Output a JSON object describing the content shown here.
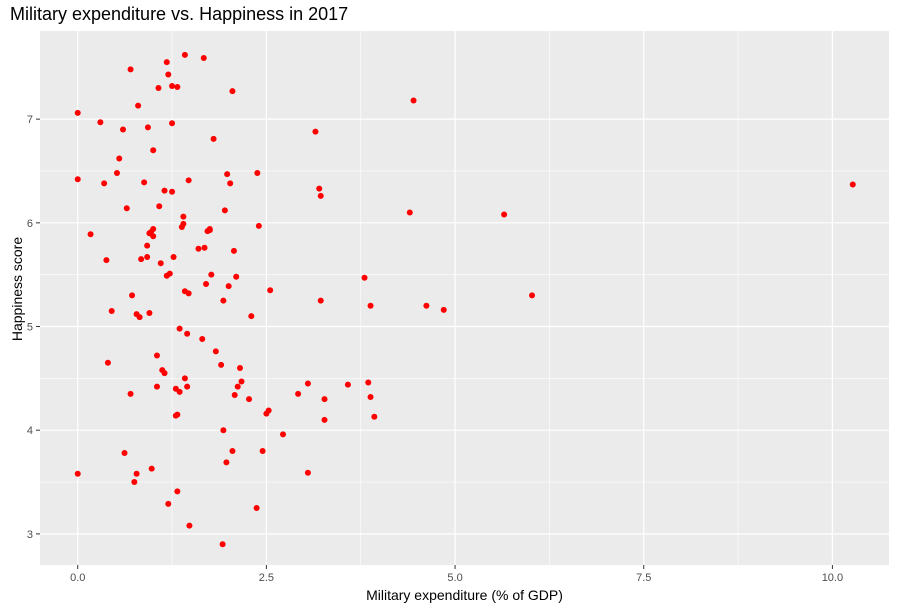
{
  "chart_data": {
    "type": "scatter",
    "title": "Military expenditure vs. Happiness in 2017",
    "xlabel": "Military expenditure (% of GDP)",
    "ylabel": "Happiness score",
    "xlim": [
      -0.5,
      10.75
    ],
    "ylim": [
      2.7,
      7.85
    ],
    "xticks": [
      0,
      2.5,
      5,
      7.5,
      10
    ],
    "xtick_labels": [
      "0.0",
      "2.5",
      "5.0",
      "7.5",
      "10.0"
    ],
    "yticks": [
      3,
      4,
      5,
      6,
      7
    ],
    "ytick_labels": [
      "3",
      "4",
      "5",
      "6",
      "7"
    ],
    "grid": true,
    "point_color": "#ff0000",
    "panel_background": "#ebebeb",
    "points": [
      [
        0.0,
        7.06
      ],
      [
        0.0,
        6.42
      ],
      [
        0.0,
        3.58
      ],
      [
        0.17,
        5.89
      ],
      [
        0.3,
        6.97
      ],
      [
        0.35,
        6.38
      ],
      [
        0.38,
        5.64
      ],
      [
        0.4,
        4.65
      ],
      [
        0.45,
        5.15
      ],
      [
        0.52,
        6.48
      ],
      [
        0.55,
        6.62
      ],
      [
        0.6,
        6.9
      ],
      [
        0.62,
        3.78
      ],
      [
        0.65,
        6.14
      ],
      [
        0.7,
        4.35
      ],
      [
        0.7,
        7.48
      ],
      [
        0.72,
        5.3
      ],
      [
        0.75,
        3.5
      ],
      [
        0.78,
        5.12
      ],
      [
        0.78,
        3.58
      ],
      [
        0.8,
        7.13
      ],
      [
        0.82,
        5.09
      ],
      [
        0.84,
        5.65
      ],
      [
        0.88,
        6.39
      ],
      [
        0.92,
        5.67
      ],
      [
        0.92,
        5.78
      ],
      [
        0.93,
        6.92
      ],
      [
        0.95,
        5.13
      ],
      [
        0.95,
        5.9
      ],
      [
        0.97,
        5.91
      ],
      [
        0.98,
        3.63
      ],
      [
        1.0,
        6.7
      ],
      [
        1.0,
        5.94
      ],
      [
        1.0,
        5.87
      ],
      [
        1.05,
        4.72
      ],
      [
        1.05,
        4.42
      ],
      [
        1.07,
        7.3
      ],
      [
        1.08,
        6.16
      ],
      [
        1.1,
        5.61
      ],
      [
        1.12,
        4.58
      ],
      [
        1.15,
        4.55
      ],
      [
        1.15,
        6.31
      ],
      [
        1.18,
        7.55
      ],
      [
        1.2,
        7.43
      ],
      [
        1.18,
        5.49
      ],
      [
        1.2,
        3.29
      ],
      [
        1.22,
        5.51
      ],
      [
        1.25,
        7.32
      ],
      [
        1.25,
        6.96
      ],
      [
        1.25,
        6.3
      ],
      [
        1.27,
        5.67
      ],
      [
        1.3,
        4.14
      ],
      [
        1.32,
        4.15
      ],
      [
        1.32,
        3.41
      ],
      [
        1.32,
        7.31
      ],
      [
        1.35,
        4.98
      ],
      [
        1.35,
        4.37
      ],
      [
        1.3,
        4.4
      ],
      [
        1.38,
        5.96
      ],
      [
        1.4,
        6.06
      ],
      [
        1.4,
        5.99
      ],
      [
        1.42,
        5.34
      ],
      [
        1.42,
        7.62
      ],
      [
        1.42,
        4.5
      ],
      [
        1.45,
        4.93
      ],
      [
        1.45,
        4.42
      ],
      [
        1.47,
        6.41
      ],
      [
        1.47,
        5.32
      ],
      [
        1.48,
        3.08
      ],
      [
        1.6,
        5.75
      ],
      [
        1.65,
        4.88
      ],
      [
        1.67,
        7.59
      ],
      [
        1.68,
        5.76
      ],
      [
        1.7,
        5.41
      ],
      [
        1.72,
        5.92
      ],
      [
        1.75,
        5.94
      ],
      [
        1.75,
        5.93
      ],
      [
        1.77,
        5.5
      ],
      [
        1.8,
        6.81
      ],
      [
        1.83,
        4.76
      ],
      [
        1.9,
        4.63
      ],
      [
        1.92,
        2.9
      ],
      [
        1.93,
        5.25
      ],
      [
        1.93,
        4.0
      ],
      [
        1.95,
        6.12
      ],
      [
        1.97,
        3.69
      ],
      [
        1.98,
        6.47
      ],
      [
        2.0,
        5.39
      ],
      [
        2.02,
        6.38
      ],
      [
        2.05,
        7.27
      ],
      [
        2.05,
        3.8
      ],
      [
        2.07,
        5.73
      ],
      [
        2.08,
        4.34
      ],
      [
        2.1,
        5.48
      ],
      [
        2.12,
        4.42
      ],
      [
        2.15,
        4.6
      ],
      [
        2.17,
        4.47
      ],
      [
        2.27,
        4.3
      ],
      [
        2.3,
        5.1
      ],
      [
        2.37,
        3.25
      ],
      [
        2.38,
        6.48
      ],
      [
        2.4,
        5.97
      ],
      [
        2.45,
        3.8
      ],
      [
        2.5,
        4.16
      ],
      [
        2.53,
        4.19
      ],
      [
        2.55,
        5.35
      ],
      [
        2.72,
        3.96
      ],
      [
        2.92,
        4.35
      ],
      [
        3.05,
        4.45
      ],
      [
        3.05,
        3.59
      ],
      [
        3.15,
        6.88
      ],
      [
        3.2,
        6.33
      ],
      [
        3.22,
        6.26
      ],
      [
        3.22,
        5.25
      ],
      [
        3.27,
        4.3
      ],
      [
        3.27,
        4.1
      ],
      [
        3.58,
        4.44
      ],
      [
        3.8,
        5.47
      ],
      [
        3.85,
        4.46
      ],
      [
        3.88,
        4.32
      ],
      [
        3.88,
        5.2
      ],
      [
        3.93,
        4.13
      ],
      [
        4.4,
        6.1
      ],
      [
        4.45,
        7.18
      ],
      [
        4.62,
        5.2
      ],
      [
        4.85,
        5.16
      ],
      [
        5.65,
        6.08
      ],
      [
        6.02,
        5.3
      ],
      [
        10.27,
        6.37
      ]
    ]
  }
}
